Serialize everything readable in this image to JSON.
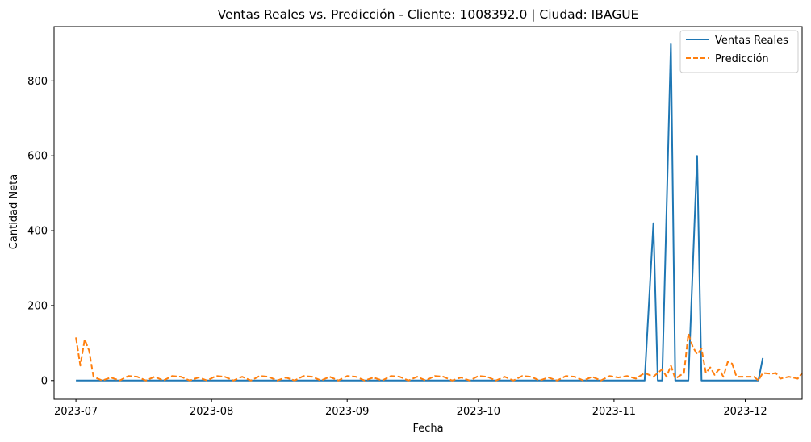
{
  "chart_data": {
    "type": "line",
    "title": "Ventas Reales vs. Predicción - Cliente: 1008392.0 | Ciudad: IBAGUE",
    "xlabel": "Fecha",
    "ylabel": "Cantidad Neta",
    "x_ticks": [
      "2023-07",
      "2023-08",
      "2023-09",
      "2023-10",
      "2023-11",
      "2023-12"
    ],
    "y_ticks": [
      0,
      200,
      400,
      600,
      800
    ],
    "xlim": [
      "2023-06-26",
      "2023-12-14"
    ],
    "ylim": [
      -50,
      945
    ],
    "grid": false,
    "legend_position": "top-right",
    "colors": {
      "real": "#1f77b4",
      "pred": "#ff7f0e"
    },
    "series": [
      {
        "name": "Ventas Reales",
        "style": "solid",
        "points": [
          [
            "2023-07-01",
            0
          ],
          [
            "2023-11-08",
            0
          ],
          [
            "2023-11-10",
            420
          ],
          [
            "2023-11-11",
            0
          ],
          [
            "2023-11-12",
            0
          ],
          [
            "2023-11-14",
            900
          ],
          [
            "2023-11-15",
            0
          ],
          [
            "2023-11-17",
            0
          ],
          [
            "2023-11-18",
            0
          ],
          [
            "2023-11-20",
            600
          ],
          [
            "2023-11-21",
            0
          ],
          [
            "2023-12-04",
            0
          ],
          [
            "2023-12-05",
            60
          ]
        ]
      },
      {
        "name": "Predicción",
        "style": "dashed",
        "points": [
          [
            "2023-07-01",
            115
          ],
          [
            "2023-07-02",
            40
          ],
          [
            "2023-07-03",
            110
          ],
          [
            "2023-07-04",
            80
          ],
          [
            "2023-07-05",
            10
          ],
          [
            "2023-07-07",
            0
          ],
          [
            "2023-07-09",
            8
          ],
          [
            "2023-07-11",
            0
          ],
          [
            "2023-07-13",
            12
          ],
          [
            "2023-07-15",
            10
          ],
          [
            "2023-07-17",
            0
          ],
          [
            "2023-07-19",
            10
          ],
          [
            "2023-07-21",
            0
          ],
          [
            "2023-07-23",
            12
          ],
          [
            "2023-07-25",
            10
          ],
          [
            "2023-07-27",
            0
          ],
          [
            "2023-07-29",
            8
          ],
          [
            "2023-07-31",
            0
          ],
          [
            "2023-08-02",
            12
          ],
          [
            "2023-08-04",
            10
          ],
          [
            "2023-08-06",
            0
          ],
          [
            "2023-08-08",
            10
          ],
          [
            "2023-08-10",
            0
          ],
          [
            "2023-08-12",
            12
          ],
          [
            "2023-08-14",
            10
          ],
          [
            "2023-08-16",
            0
          ],
          [
            "2023-08-18",
            8
          ],
          [
            "2023-08-20",
            0
          ],
          [
            "2023-08-22",
            12
          ],
          [
            "2023-08-24",
            10
          ],
          [
            "2023-08-26",
            0
          ],
          [
            "2023-08-28",
            10
          ],
          [
            "2023-08-30",
            0
          ],
          [
            "2023-09-01",
            12
          ],
          [
            "2023-09-03",
            10
          ],
          [
            "2023-09-05",
            0
          ],
          [
            "2023-09-07",
            8
          ],
          [
            "2023-09-09",
            0
          ],
          [
            "2023-09-11",
            12
          ],
          [
            "2023-09-13",
            10
          ],
          [
            "2023-09-15",
            0
          ],
          [
            "2023-09-17",
            10
          ],
          [
            "2023-09-19",
            0
          ],
          [
            "2023-09-21",
            12
          ],
          [
            "2023-09-23",
            10
          ],
          [
            "2023-09-25",
            0
          ],
          [
            "2023-09-27",
            8
          ],
          [
            "2023-09-29",
            0
          ],
          [
            "2023-10-01",
            12
          ],
          [
            "2023-10-03",
            10
          ],
          [
            "2023-10-05",
            0
          ],
          [
            "2023-10-07",
            10
          ],
          [
            "2023-10-09",
            0
          ],
          [
            "2023-10-11",
            12
          ],
          [
            "2023-10-13",
            10
          ],
          [
            "2023-10-15",
            0
          ],
          [
            "2023-10-17",
            8
          ],
          [
            "2023-10-19",
            0
          ],
          [
            "2023-10-21",
            12
          ],
          [
            "2023-10-23",
            10
          ],
          [
            "2023-10-25",
            0
          ],
          [
            "2023-10-27",
            10
          ],
          [
            "2023-10-29",
            0
          ],
          [
            "2023-10-31",
            12
          ],
          [
            "2023-11-02",
            8
          ],
          [
            "2023-11-04",
            12
          ],
          [
            "2023-11-06",
            5
          ],
          [
            "2023-11-08",
            20
          ],
          [
            "2023-11-10",
            10
          ],
          [
            "2023-11-12",
            30
          ],
          [
            "2023-11-13",
            10
          ],
          [
            "2023-11-14",
            40
          ],
          [
            "2023-11-15",
            5
          ],
          [
            "2023-11-17",
            20
          ],
          [
            "2023-11-18",
            125
          ],
          [
            "2023-11-19",
            90
          ],
          [
            "2023-11-20",
            70
          ],
          [
            "2023-11-21",
            85
          ],
          [
            "2023-11-22",
            20
          ],
          [
            "2023-11-23",
            35
          ],
          [
            "2023-11-24",
            15
          ],
          [
            "2023-11-25",
            30
          ],
          [
            "2023-11-26",
            10
          ],
          [
            "2023-11-27",
            50
          ],
          [
            "2023-11-28",
            45
          ],
          [
            "2023-11-29",
            10
          ],
          [
            "2023-12-01",
            10
          ],
          [
            "2023-12-03",
            10
          ],
          [
            "2023-12-04",
            0
          ],
          [
            "2023-12-05",
            20
          ],
          [
            "2023-12-07",
            18
          ],
          [
            "2023-12-08",
            20
          ],
          [
            "2023-12-09",
            5
          ],
          [
            "2023-12-11",
            10
          ],
          [
            "2023-12-13",
            5
          ],
          [
            "2023-12-14",
            20
          ],
          [
            "2023-12-05",
            20
          ]
        ]
      }
    ]
  }
}
